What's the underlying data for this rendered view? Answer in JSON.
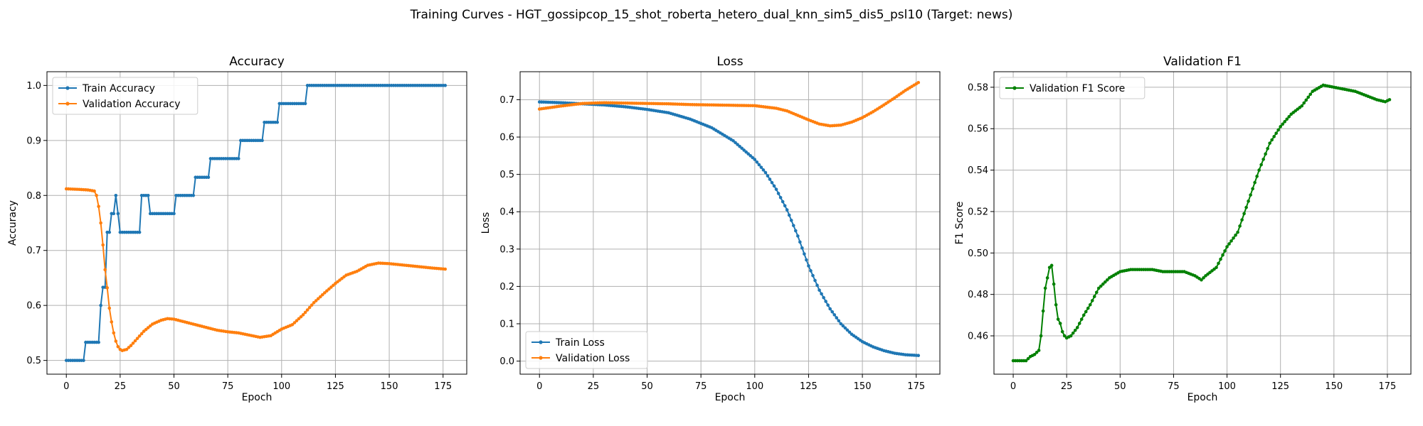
{
  "suptitle": "Training Curves - HGT_gossipcop_15_shot_roberta_hetero_dual_knn_sim5_dis5_psl10 (Target: news)",
  "colors": {
    "train": "#1f77b4",
    "val": "#ff7f0e",
    "f1": "#008000",
    "grid": "#b0b0b0"
  },
  "chart_data": [
    {
      "type": "line",
      "title": "Accuracy",
      "xlabel": "Epoch",
      "ylabel": "Accuracy",
      "xlim": [
        -9,
        186
      ],
      "ylim": [
        0.475,
        1.025
      ],
      "xticks": [
        0,
        25,
        50,
        75,
        100,
        125,
        150,
        175
      ],
      "yticks": [
        0.5,
        0.6,
        0.7,
        0.8,
        0.9,
        1.0
      ],
      "ytick_labels": [
        "0.5",
        "0.6",
        "0.7",
        "0.8",
        "0.9",
        "1.0"
      ],
      "legend_position": "upper-left",
      "grid": true,
      "series": [
        {
          "name": "Train Accuracy",
          "color": "#1f77b4",
          "points": [
            [
              0,
              0.5
            ],
            [
              8,
              0.5
            ],
            [
              9,
              0.533
            ],
            [
              15,
              0.533
            ],
            [
              16,
              0.6
            ],
            [
              17,
              0.633
            ],
            [
              18,
              0.633
            ],
            [
              19,
              0.733
            ],
            [
              20,
              0.733
            ],
            [
              21,
              0.767
            ],
            [
              22,
              0.767
            ],
            [
              23,
              0.8
            ],
            [
              24,
              0.767
            ],
            [
              25,
              0.733
            ],
            [
              34,
              0.733
            ],
            [
              35,
              0.8
            ],
            [
              38,
              0.8
            ],
            [
              39,
              0.767
            ],
            [
              50,
              0.767
            ],
            [
              51,
              0.8
            ],
            [
              59,
              0.8
            ],
            [
              60,
              0.833
            ],
            [
              66,
              0.833
            ],
            [
              67,
              0.867
            ],
            [
              80,
              0.867
            ],
            [
              81,
              0.9
            ],
            [
              91,
              0.9
            ],
            [
              92,
              0.933
            ],
            [
              98,
              0.933
            ],
            [
              99,
              0.967
            ],
            [
              111,
              0.967
            ],
            [
              112,
              1.0
            ],
            [
              176,
              1.0
            ]
          ]
        },
        {
          "name": "Validation Accuracy",
          "color": "#ff7f0e",
          "points": [
            [
              0,
              0.812
            ],
            [
              6,
              0.811
            ],
            [
              10,
              0.81
            ],
            [
              13,
              0.808
            ],
            [
              14,
              0.8
            ],
            [
              15,
              0.78
            ],
            [
              16,
              0.75
            ],
            [
              17,
              0.71
            ],
            [
              18,
              0.665
            ],
            [
              19,
              0.632
            ],
            [
              20,
              0.595
            ],
            [
              21,
              0.57
            ],
            [
              22,
              0.55
            ],
            [
              23,
              0.535
            ],
            [
              24,
              0.525
            ],
            [
              25,
              0.52
            ],
            [
              26,
              0.518
            ],
            [
              28,
              0.52
            ],
            [
              30,
              0.527
            ],
            [
              33,
              0.54
            ],
            [
              36,
              0.553
            ],
            [
              40,
              0.566
            ],
            [
              44,
              0.573
            ],
            [
              47,
              0.576
            ],
            [
              50,
              0.575
            ],
            [
              55,
              0.57
            ],
            [
              60,
              0.565
            ],
            [
              65,
              0.56
            ],
            [
              70,
              0.555
            ],
            [
              75,
              0.552
            ],
            [
              80,
              0.55
            ],
            [
              85,
              0.546
            ],
            [
              90,
              0.542
            ],
            [
              95,
              0.545
            ],
            [
              100,
              0.557
            ],
            [
              105,
              0.565
            ],
            [
              110,
              0.583
            ],
            [
              115,
              0.605
            ],
            [
              120,
              0.623
            ],
            [
              125,
              0.64
            ],
            [
              130,
              0.655
            ],
            [
              135,
              0.662
            ],
            [
              140,
              0.673
            ],
            [
              145,
              0.677
            ],
            [
              150,
              0.676
            ],
            [
              155,
              0.674
            ],
            [
              160,
              0.672
            ],
            [
              165,
              0.67
            ],
            [
              170,
              0.668
            ],
            [
              176,
              0.666
            ]
          ]
        }
      ]
    },
    {
      "type": "line",
      "title": "Loss",
      "xlabel": "Epoch",
      "ylabel": "Loss",
      "xlim": [
        -9,
        186
      ],
      "ylim": [
        -0.035,
        0.775
      ],
      "xticks": [
        0,
        25,
        50,
        75,
        100,
        125,
        150,
        175
      ],
      "yticks": [
        0.0,
        0.1,
        0.2,
        0.3,
        0.4,
        0.5,
        0.6,
        0.7
      ],
      "ytick_labels": [
        "0.0",
        "0.1",
        "0.2",
        "0.3",
        "0.4",
        "0.5",
        "0.6",
        "0.7"
      ],
      "legend_position": "lower-left",
      "grid": true,
      "series": [
        {
          "name": "Train Loss",
          "color": "#1f77b4",
          "points": [
            [
              0,
              0.694
            ],
            [
              10,
              0.692
            ],
            [
              20,
              0.689
            ],
            [
              30,
              0.686
            ],
            [
              40,
              0.681
            ],
            [
              50,
              0.674
            ],
            [
              60,
              0.665
            ],
            [
              70,
              0.648
            ],
            [
              80,
              0.625
            ],
            [
              90,
              0.59
            ],
            [
              100,
              0.54
            ],
            [
              105,
              0.505
            ],
            [
              110,
              0.46
            ],
            [
              115,
              0.405
            ],
            [
              120,
              0.335
            ],
            [
              125,
              0.255
            ],
            [
              130,
              0.19
            ],
            [
              135,
              0.14
            ],
            [
              140,
              0.1
            ],
            [
              145,
              0.072
            ],
            [
              150,
              0.052
            ],
            [
              155,
              0.038
            ],
            [
              160,
              0.028
            ],
            [
              165,
              0.021
            ],
            [
              170,
              0.017
            ],
            [
              176,
              0.015
            ]
          ]
        },
        {
          "name": "Validation Loss",
          "color": "#ff7f0e",
          "points": [
            [
              0,
              0.675
            ],
            [
              10,
              0.683
            ],
            [
              20,
              0.69
            ],
            [
              30,
              0.692
            ],
            [
              40,
              0.691
            ],
            [
              50,
              0.69
            ],
            [
              60,
              0.689
            ],
            [
              70,
              0.687
            ],
            [
              80,
              0.686
            ],
            [
              90,
              0.685
            ],
            [
              100,
              0.684
            ],
            [
              110,
              0.677
            ],
            [
              115,
              0.67
            ],
            [
              120,
              0.658
            ],
            [
              125,
              0.646
            ],
            [
              130,
              0.635
            ],
            [
              135,
              0.63
            ],
            [
              140,
              0.632
            ],
            [
              145,
              0.64
            ],
            [
              150,
              0.652
            ],
            [
              155,
              0.668
            ],
            [
              160,
              0.686
            ],
            [
              165,
              0.705
            ],
            [
              170,
              0.725
            ],
            [
              176,
              0.746
            ]
          ]
        }
      ]
    },
    {
      "type": "line",
      "title": "Validation F1",
      "xlabel": "Epoch",
      "ylabel": "F1 Score",
      "xlim": [
        -9,
        186
      ],
      "ylim": [
        0.4415,
        0.5875
      ],
      "xticks": [
        0,
        25,
        50,
        75,
        100,
        125,
        150,
        175
      ],
      "yticks": [
        0.46,
        0.48,
        0.5,
        0.52,
        0.54,
        0.56,
        0.58
      ],
      "ytick_labels": [
        "0.46",
        "0.48",
        "0.50",
        "0.52",
        "0.54",
        "0.56",
        "0.58"
      ],
      "legend_position": "upper-left",
      "grid": true,
      "series": [
        {
          "name": "Validation F1 Score",
          "color": "#008000",
          "points": [
            [
              0,
              0.448
            ],
            [
              6,
              0.448
            ],
            [
              8,
              0.45
            ],
            [
              10,
              0.451
            ],
            [
              12,
              0.453
            ],
            [
              13,
              0.46
            ],
            [
              14,
              0.472
            ],
            [
              15,
              0.483
            ],
            [
              16,
              0.488
            ],
            [
              17,
              0.493
            ],
            [
              18,
              0.494
            ],
            [
              19,
              0.485
            ],
            [
              20,
              0.475
            ],
            [
              21,
              0.468
            ],
            [
              22,
              0.466
            ],
            [
              23,
              0.462
            ],
            [
              24,
              0.46
            ],
            [
              25,
              0.459
            ],
            [
              27,
              0.46
            ],
            [
              30,
              0.464
            ],
            [
              33,
              0.47
            ],
            [
              36,
              0.475
            ],
            [
              40,
              0.483
            ],
            [
              45,
              0.488
            ],
            [
              50,
              0.491
            ],
            [
              55,
              0.492
            ],
            [
              60,
              0.492
            ],
            [
              65,
              0.492
            ],
            [
              70,
              0.491
            ],
            [
              75,
              0.491
            ],
            [
              80,
              0.491
            ],
            [
              85,
              0.489
            ],
            [
              88,
              0.487
            ],
            [
              90,
              0.489
            ],
            [
              95,
              0.493
            ],
            [
              100,
              0.503
            ],
            [
              105,
              0.51
            ],
            [
              110,
              0.525
            ],
            [
              115,
              0.54
            ],
            [
              120,
              0.553
            ],
            [
              125,
              0.561
            ],
            [
              130,
              0.567
            ],
            [
              135,
              0.571
            ],
            [
              140,
              0.578
            ],
            [
              145,
              0.581
            ],
            [
              150,
              0.58
            ],
            [
              155,
              0.579
            ],
            [
              160,
              0.578
            ],
            [
              165,
              0.576
            ],
            [
              170,
              0.574
            ],
            [
              174,
              0.573
            ],
            [
              176,
              0.574
            ]
          ]
        }
      ]
    }
  ]
}
